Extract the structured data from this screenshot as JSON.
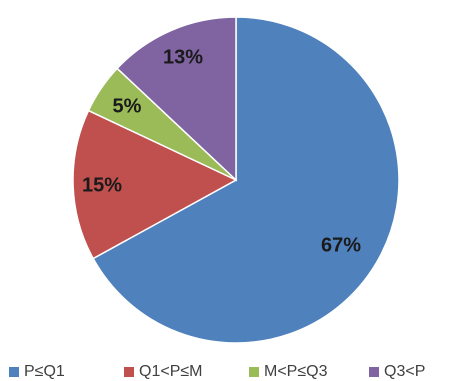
{
  "chart_data": {
    "type": "pie",
    "title": "",
    "categories": [
      "P≤Q1",
      "Q1<P≤M",
      "M<P≤Q3",
      "Q3<P"
    ],
    "values": [
      67,
      15,
      5,
      13
    ],
    "data_labels": [
      "67%",
      "15%",
      "5%",
      "13%"
    ],
    "colors": [
      "#4f81bd",
      "#c0504d",
      "#9bbb59",
      "#8064a2"
    ],
    "start_angle": "12 o'clock",
    "direction": "clockwise",
    "legend_position": "bottom"
  }
}
